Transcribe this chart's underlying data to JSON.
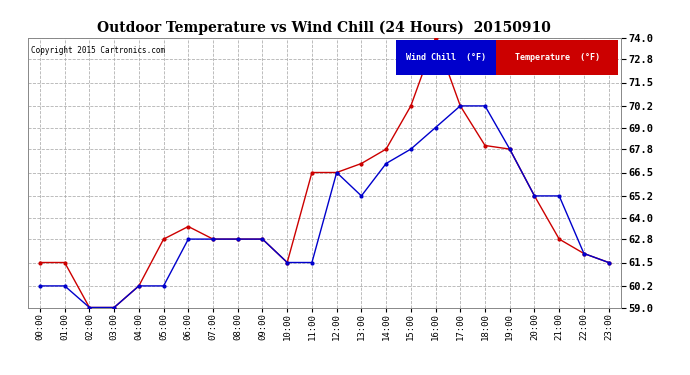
{
  "title": "Outdoor Temperature vs Wind Chill (24 Hours)  20150910",
  "copyright": "Copyright 2015 Cartronics.com",
  "background_color": "#ffffff",
  "plot_bg_color": "#ffffff",
  "grid_color": "#aaaaaa",
  "x_labels": [
    "00:00",
    "01:00",
    "02:00",
    "03:00",
    "04:00",
    "05:00",
    "06:00",
    "07:00",
    "08:00",
    "09:00",
    "10:00",
    "11:00",
    "12:00",
    "13:00",
    "14:00",
    "15:00",
    "16:00",
    "17:00",
    "18:00",
    "19:00",
    "20:00",
    "21:00",
    "22:00",
    "23:00"
  ],
  "ylim": [
    59.0,
    74.0
  ],
  "yticks": [
    59.0,
    60.2,
    61.5,
    62.8,
    64.0,
    65.2,
    66.5,
    67.8,
    69.0,
    70.2,
    71.5,
    72.8,
    74.0
  ],
  "temperature": [
    61.5,
    61.5,
    59.0,
    59.0,
    60.2,
    62.8,
    63.5,
    62.8,
    62.8,
    62.8,
    61.5,
    66.5,
    66.5,
    67.0,
    67.8,
    70.2,
    74.0,
    70.2,
    68.0,
    67.8,
    65.2,
    62.8,
    62.0,
    61.5
  ],
  "wind_chill": [
    60.2,
    60.2,
    59.0,
    59.0,
    60.2,
    60.2,
    62.8,
    62.8,
    62.8,
    62.8,
    61.5,
    61.5,
    66.5,
    65.2,
    67.0,
    67.8,
    69.0,
    70.2,
    70.2,
    67.8,
    65.2,
    65.2,
    62.0,
    61.5
  ],
  "temp_color": "#cc0000",
  "wind_color": "#0000cc",
  "legend_wind_bg": "#0000cc",
  "legend_temp_bg": "#cc0000",
  "legend_wind_text": "Wind Chill  (°F)",
  "legend_temp_text": "Temperature  (°F)"
}
